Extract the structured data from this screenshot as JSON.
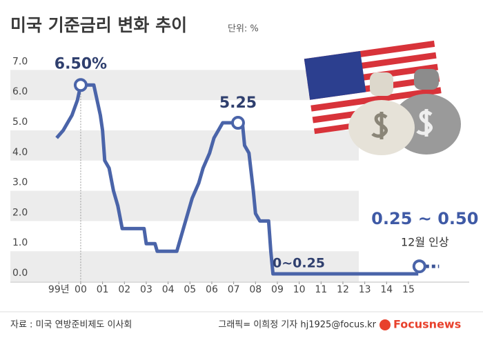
{
  "chart_data": {
    "type": "line",
    "title": "미국 기준금리 변화 추이",
    "unit": "단위: %",
    "xlim": [
      1997.57,
      2017.78
    ],
    "ylim": [
      0,
      7.5
    ],
    "xticks": [
      {
        "value": 1999,
        "label": "99년"
      },
      {
        "value": 2000,
        "label": "00"
      },
      {
        "value": 2001,
        "label": "01"
      },
      {
        "value": 2002,
        "label": "02"
      },
      {
        "value": 2003,
        "label": "03"
      },
      {
        "value": 2004,
        "label": "04"
      },
      {
        "value": 2005,
        "label": "05"
      },
      {
        "value": 2006,
        "label": "06"
      },
      {
        "value": 2007,
        "label": "07"
      },
      {
        "value": 2008,
        "label": "08"
      },
      {
        "value": 2009,
        "label": "09"
      },
      {
        "value": 2010,
        "label": "10"
      },
      {
        "value": 2011,
        "label": "11"
      },
      {
        "value": 2012,
        "label": "12"
      },
      {
        "value": 2013,
        "label": "13"
      },
      {
        "value": 2014,
        "label": "14"
      },
      {
        "value": 2015,
        "label": "15"
      }
    ],
    "yticks": [
      {
        "value": 0,
        "label": "0.0"
      },
      {
        "value": 1,
        "label": "1.0"
      },
      {
        "value": 2,
        "label": "2.0"
      },
      {
        "value": 3,
        "label": "3.0"
      },
      {
        "value": 4,
        "label": "4.0"
      },
      {
        "value": 5,
        "label": "5.0"
      },
      {
        "value": 6,
        "label": "6.0"
      },
      {
        "value": 7,
        "label": "7.0"
      }
    ],
    "grid": "bands",
    "series": [
      {
        "color": "#4a64a9",
        "style": "solid",
        "x": [
          1998.9,
          1999.2,
          1999.4,
          1999.6,
          1999.85,
          2000.0,
          2000.6,
          2000.9,
          2001.0,
          2001.1,
          2001.3,
          2001.5,
          2001.7,
          2001.9,
          2002.9,
          2003.0,
          2003.4,
          2003.5,
          2004.4,
          2004.5,
          2004.7,
          2004.9,
          2005.1,
          2005.4,
          2005.6,
          2005.9,
          2006.1,
          2006.3,
          2006.5,
          2007.2,
          2007.4,
          2007.5,
          2007.7,
          2007.9,
          2008.0,
          2008.2,
          2008.6,
          2008.7,
          2008.8,
          2015.45
        ],
        "values": [
          4.75,
          5.0,
          5.25,
          5.5,
          6.0,
          6.5,
          6.5,
          5.5,
          5.0,
          4.0,
          3.75,
          3.0,
          2.5,
          1.75,
          1.75,
          1.25,
          1.25,
          1.0,
          1.0,
          1.25,
          1.75,
          2.25,
          2.75,
          3.25,
          3.75,
          4.25,
          4.75,
          5.0,
          5.25,
          5.25,
          5.25,
          4.5,
          4.25,
          3.0,
          2.25,
          2.0,
          2.0,
          1.0,
          0.25,
          0.25
        ]
      },
      {
        "color": "#3d5597",
        "style": "dotted",
        "x": [
          2015.5,
          2016.4
        ],
        "values": [
          0.5,
          0.5
        ]
      }
    ],
    "highlights": [
      {
        "x": 2000.0,
        "y": 6.5,
        "label": "6.50%"
      },
      {
        "x": 2007.2,
        "y": 5.25,
        "label": "5.25"
      },
      {
        "x": 2015.5,
        "y": 0.5,
        "label": "0.25 ~ 0.50",
        "note": "12월 인상"
      }
    ],
    "annotations": [
      "0~0.25"
    ],
    "source": "자료 : 미국 연방준비제도 이사회",
    "credit": "그래픽= 이희정 기자 hj1925@focus.kr",
    "logo": "Focusnews"
  }
}
